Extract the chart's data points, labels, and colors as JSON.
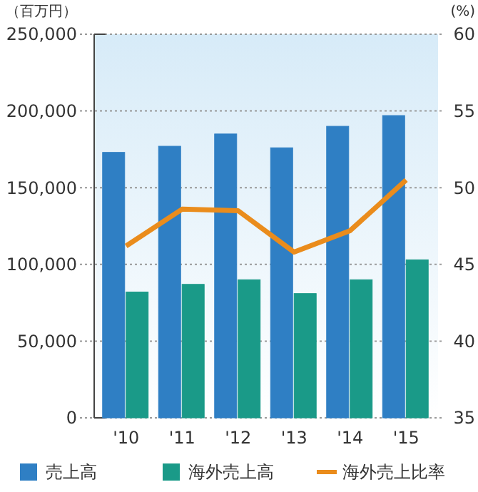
{
  "chart_data": {
    "type": "bar",
    "categories": [
      "'10",
      "'11",
      "'12",
      "'13",
      "'14",
      "'15"
    ],
    "series": [
      {
        "name": "売上高",
        "color": "#2f7fc4",
        "values": [
          173000,
          177000,
          185000,
          176000,
          190000,
          197000
        ]
      },
      {
        "name": "海外売上高",
        "color": "#1a9a88",
        "values": [
          82000,
          87000,
          90000,
          81000,
          90000,
          103000
        ]
      },
      {
        "name": "海外売上比率",
        "type": "line",
        "axis": "y2",
        "color": "#ea8c1c",
        "values": [
          46.2,
          48.6,
          48.5,
          45.8,
          47.2,
          50.5
        ]
      }
    ],
    "ylabel": "（百万円）",
    "y2label": "(%)",
    "ylim": [
      0,
      250000
    ],
    "yticks": [
      {
        "value": 0,
        "label": "0"
      },
      {
        "value": 50000,
        "label": "50,000"
      },
      {
        "value": 100000,
        "label": "100,000"
      },
      {
        "value": 150000,
        "label": "150,000"
      },
      {
        "value": 200000,
        "label": "200,000"
      },
      {
        "value": 250000,
        "label": "250,000"
      }
    ],
    "y2lim": [
      35,
      60
    ],
    "y2ticks": [
      35,
      40,
      45,
      50,
      55,
      60
    ],
    "grid": "y",
    "legend": "bottom"
  }
}
